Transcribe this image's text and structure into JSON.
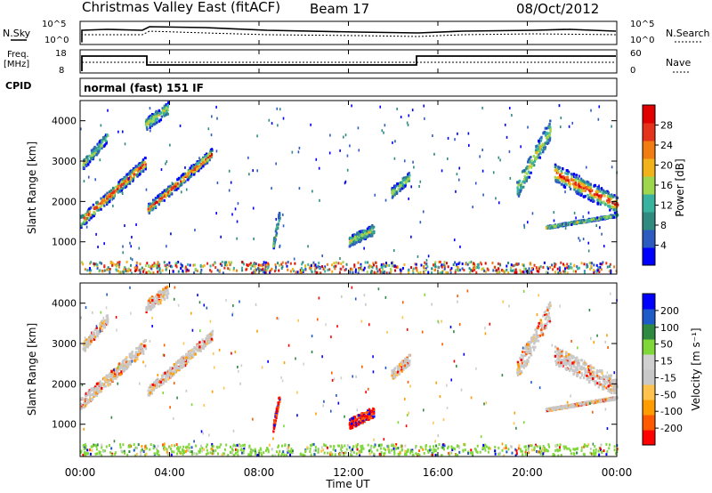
{
  "header": {
    "title": "Christmas Valley East (fitACF)",
    "beam": "Beam 17",
    "date": "08/Oct/2012"
  },
  "param_panels": {
    "nsky_label": "N.Sky",
    "nsearch_label": "N.Search",
    "noise_ticks": [
      "10^5",
      "10^0"
    ],
    "freq_label_1": "Freq.",
    "freq_label_2": "[MHz]",
    "freq_ticks": [
      "18",
      "8"
    ],
    "nave_label": "Nave",
    "nave_ticks": [
      "60",
      "0"
    ],
    "cpid_label": "CPID",
    "cpid_text": "normal (fast) 151 IF"
  },
  "colors": {
    "power_scale": [
      "#0000ff",
      "#2e5bbf",
      "#2f8a80",
      "#39b3a0",
      "#9ed64d",
      "#f2b21a",
      "#f07c12",
      "#e5321a",
      "#e00000"
    ],
    "velocity_scale": [
      "#ff0000",
      "#ff5a00",
      "#ff9c00",
      "#ffc34d",
      "#c8c8c8",
      "#d0d0d0",
      "#7fd73a",
      "#2e8a40",
      "#1e5ac8",
      "#0000ff"
    ]
  },
  "chart_data": [
    {
      "type": "heatmap",
      "name": "power",
      "ylabel": "Slant Range [km]",
      "yticks": [
        "1000",
        "2000",
        "3000",
        "4000"
      ],
      "ylim": [
        200,
        4500
      ],
      "colorbar_label": "Power [dB]",
      "colorbar_ticks": [
        "4",
        "8",
        "12",
        "16",
        "20",
        "24",
        "28"
      ],
      "vlim": [
        0,
        32
      ]
    },
    {
      "type": "heatmap",
      "name": "velocity",
      "ylabel": "Slant Range [km]",
      "yticks": [
        "1000",
        "2000",
        "3000",
        "4000"
      ],
      "ylim": [
        200,
        4500
      ],
      "colorbar_label": "Velocity [m s⁻¹]",
      "colorbar_ticks": [
        "-200",
        "-100",
        "-50",
        "-15",
        "15",
        "50",
        "100",
        "200"
      ]
    }
  ],
  "xaxis": {
    "label": "Time UT",
    "ticks": [
      "00:00",
      "04:00",
      "08:00",
      "12:00",
      "16:00",
      "20:00",
      "00:00"
    ],
    "xlim": [
      0,
      24
    ]
  }
}
